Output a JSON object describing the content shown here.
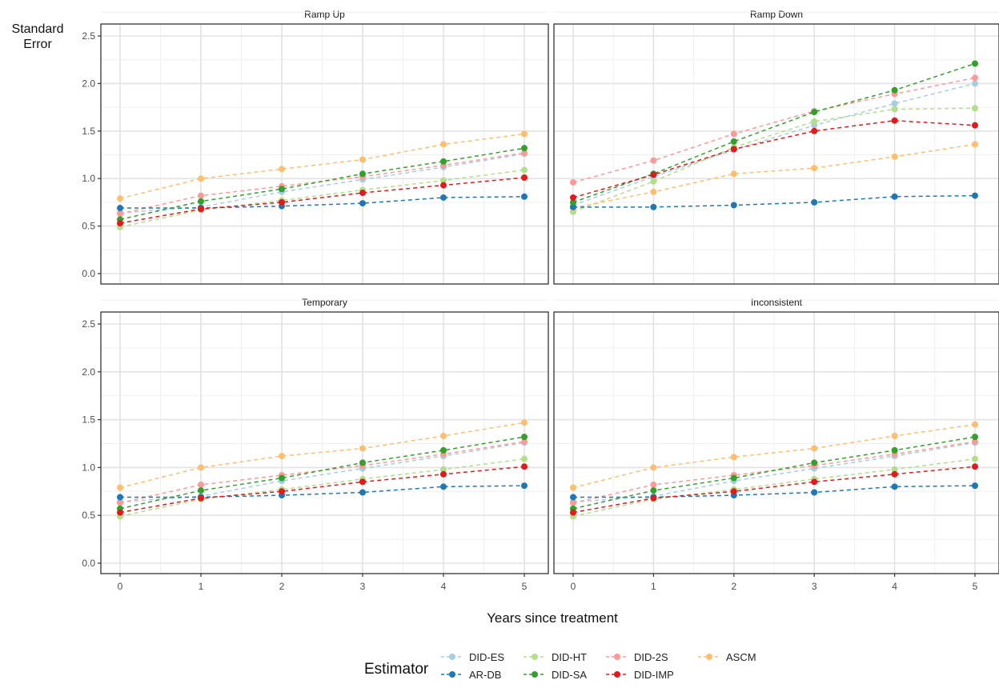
{
  "chart_data": {
    "type": "line",
    "ylabel": "Standard\nError",
    "xlabel": "Years since treatment",
    "ylim": [
      0,
      2.5
    ],
    "xlim": [
      0,
      5
    ],
    "x_ticks": [
      0,
      1,
      2,
      3,
      4,
      5
    ],
    "y_ticks": [
      0.0,
      0.5,
      1.0,
      1.5,
      2.0,
      2.5
    ],
    "y_tick_labels": [
      "0.0",
      "0.5",
      "1.0",
      "1.5",
      "2.0",
      "2.5"
    ],
    "grid": true,
    "legend": {
      "title": "Estimator",
      "placement": "bottom",
      "rows": [
        [
          "DID-ES",
          "DID-HT",
          "DID-2S",
          "ASCM"
        ],
        [
          "AR-DB",
          "DID-SA",
          "DID-IMP"
        ]
      ]
    },
    "series_styles": {
      "DID-ES": "#a6cee3",
      "DID-HT": "#b2df8a",
      "DID-2S": "#fb9a99",
      "ASCM": "#fdbf6f",
      "AR-DB": "#1f78b4",
      "DID-SA": "#33a02c",
      "DID-IMP": "#e31a1c"
    },
    "panels": [
      {
        "title": "Ramp Up",
        "x": [
          0,
          1,
          2,
          3,
          4,
          5
        ],
        "series": [
          {
            "name": "DID-ES",
            "values": [
              0.64,
              0.7,
              0.86,
              0.99,
              1.12,
              1.26
            ]
          },
          {
            "name": "DID-HT",
            "values": [
              0.49,
              0.67,
              0.77,
              0.88,
              0.98,
              1.09
            ]
          },
          {
            "name": "DID-2S",
            "values": [
              0.63,
              0.82,
              0.92,
              1.02,
              1.14,
              1.27
            ]
          },
          {
            "name": "ASCM",
            "values": [
              0.79,
              1.0,
              1.1,
              1.2,
              1.36,
              1.47
            ]
          },
          {
            "name": "AR-DB",
            "values": [
              0.69,
              0.69,
              0.71,
              0.74,
              0.8,
              0.81
            ]
          },
          {
            "name": "DID-SA",
            "values": [
              0.57,
              0.76,
              0.89,
              1.05,
              1.18,
              1.32
            ]
          },
          {
            "name": "DID-IMP",
            "values": [
              0.53,
              0.68,
              0.75,
              0.85,
              0.93,
              1.01
            ]
          }
        ]
      },
      {
        "title": "Ramp Down",
        "x": [
          0,
          1,
          2,
          3,
          4,
          5
        ],
        "series": [
          {
            "name": "DID-ES",
            "values": [
              0.72,
              1.02,
              1.3,
              1.56,
              1.79,
              2.0
            ]
          },
          {
            "name": "DID-HT",
            "values": [
              0.65,
              0.97,
              1.33,
              1.6,
              1.73,
              1.74
            ]
          },
          {
            "name": "DID-2S",
            "values": [
              0.96,
              1.19,
              1.47,
              1.71,
              1.89,
              2.06
            ]
          },
          {
            "name": "ASCM",
            "values": [
              0.69,
              0.86,
              1.05,
              1.11,
              1.23,
              1.36
            ]
          },
          {
            "name": "AR-DB",
            "values": [
              0.7,
              0.7,
              0.72,
              0.75,
              0.81,
              0.82
            ]
          },
          {
            "name": "DID-SA",
            "values": [
              0.75,
              1.05,
              1.39,
              1.7,
              1.93,
              2.21
            ]
          },
          {
            "name": "DID-IMP",
            "values": [
              0.8,
              1.04,
              1.31,
              1.5,
              1.61,
              1.56
            ]
          }
        ]
      },
      {
        "title": "Temporary",
        "x": [
          0,
          1,
          2,
          3,
          4,
          5
        ],
        "series": [
          {
            "name": "DID-ES",
            "values": [
              0.64,
              0.7,
              0.86,
              0.99,
              1.12,
              1.26
            ]
          },
          {
            "name": "DID-HT",
            "values": [
              0.49,
              0.67,
              0.77,
              0.88,
              0.98,
              1.09
            ]
          },
          {
            "name": "DID-2S",
            "values": [
              0.63,
              0.82,
              0.92,
              1.02,
              1.14,
              1.27
            ]
          },
          {
            "name": "ASCM",
            "values": [
              0.79,
              1.0,
              1.12,
              1.2,
              1.33,
              1.47
            ]
          },
          {
            "name": "AR-DB",
            "values": [
              0.69,
              0.69,
              0.71,
              0.74,
              0.8,
              0.81
            ]
          },
          {
            "name": "DID-SA",
            "values": [
              0.57,
              0.76,
              0.89,
              1.05,
              1.18,
              1.32
            ]
          },
          {
            "name": "DID-IMP",
            "values": [
              0.53,
              0.68,
              0.75,
              0.85,
              0.93,
              1.01
            ]
          }
        ]
      },
      {
        "title": "Inconsistent",
        "x": [
          0,
          1,
          2,
          3,
          4,
          5
        ],
        "series": [
          {
            "name": "DID-ES",
            "values": [
              0.64,
              0.7,
              0.86,
              0.99,
              1.12,
              1.26
            ]
          },
          {
            "name": "DID-HT",
            "values": [
              0.49,
              0.67,
              0.77,
              0.88,
              0.98,
              1.09
            ]
          },
          {
            "name": "DID-2S",
            "values": [
              0.63,
              0.82,
              0.92,
              1.02,
              1.14,
              1.27
            ]
          },
          {
            "name": "ASCM",
            "values": [
              0.79,
              1.0,
              1.11,
              1.2,
              1.33,
              1.45
            ]
          },
          {
            "name": "AR-DB",
            "values": [
              0.69,
              0.69,
              0.71,
              0.74,
              0.8,
              0.81
            ]
          },
          {
            "name": "DID-SA",
            "values": [
              0.57,
              0.76,
              0.89,
              1.05,
              1.18,
              1.32
            ]
          },
          {
            "name": "DID-IMP",
            "values": [
              0.53,
              0.68,
              0.75,
              0.85,
              0.93,
              1.01
            ]
          }
        ]
      }
    ]
  }
}
